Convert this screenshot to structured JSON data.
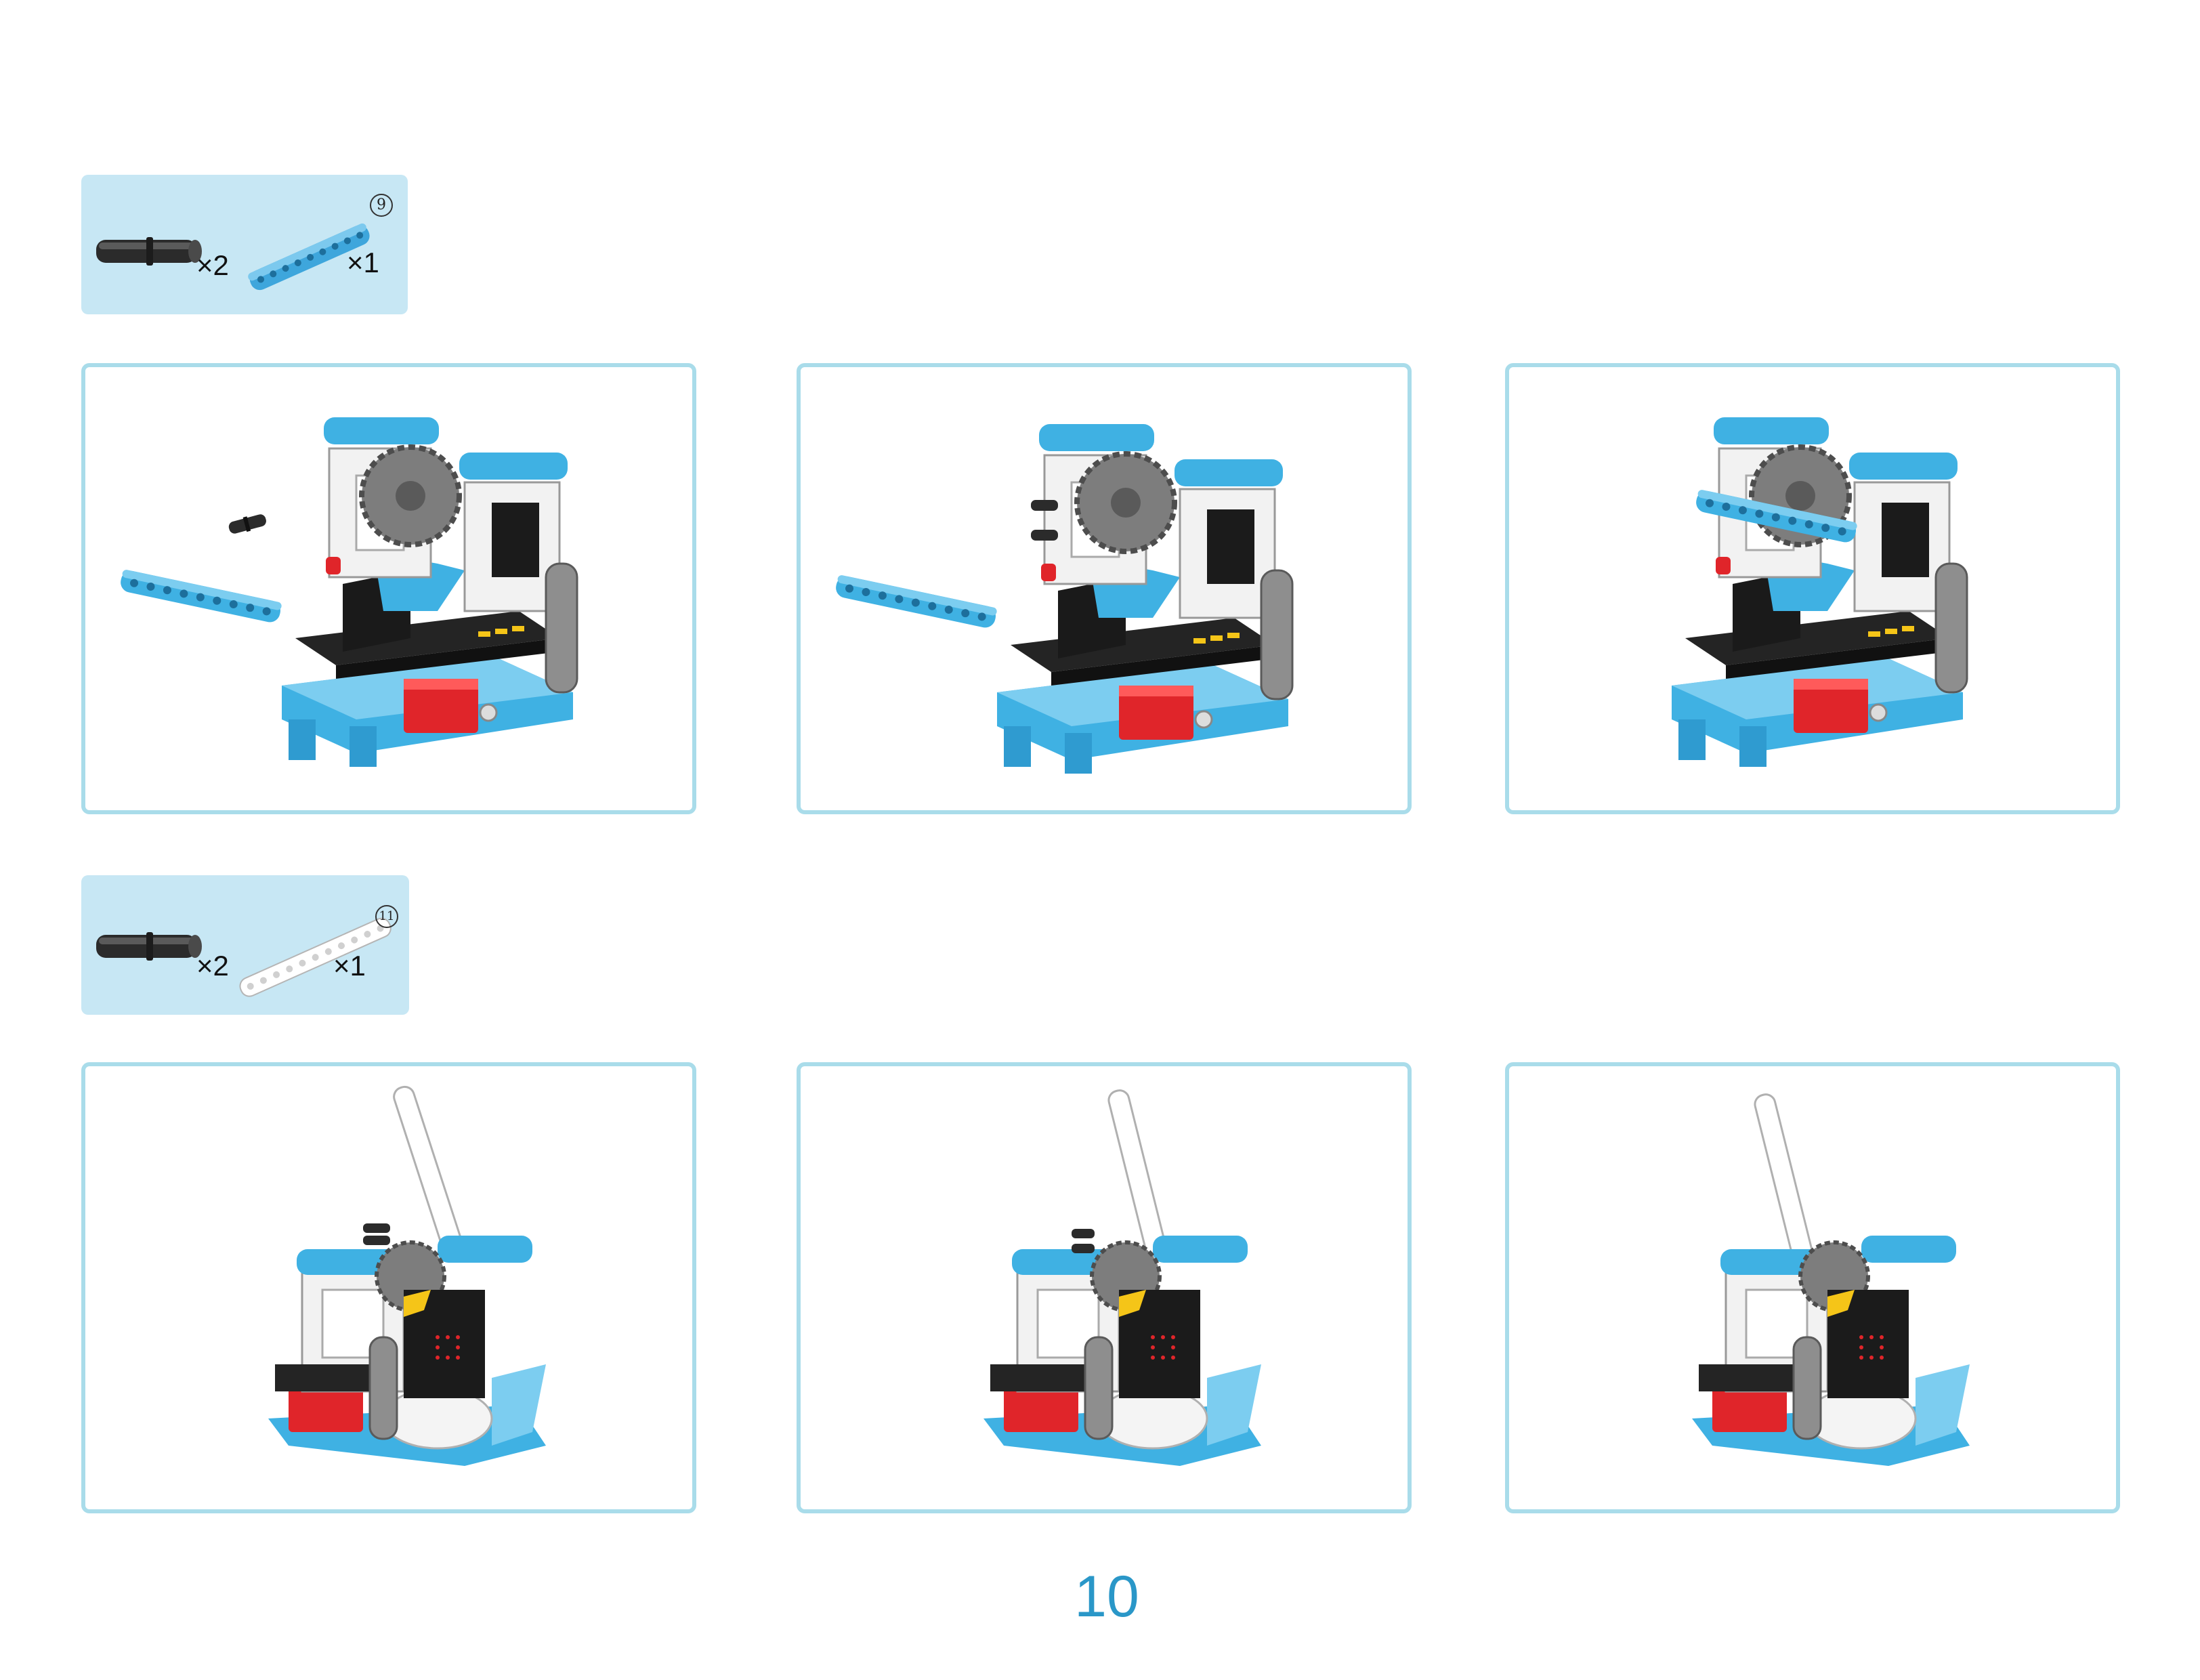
{
  "steps": [
    {
      "parts": [
        {
          "name": "black connector pin",
          "icon": "black-pin-icon",
          "quantity": "×2"
        },
        {
          "name": "blue beam",
          "icon": "blue-beam-icon",
          "quantity": "×1",
          "hole_count": "9"
        }
      ],
      "panels": [
        {
          "illustration": "assembly-step-beam-separate",
          "loose_beam": true,
          "beam_attached": false
        },
        {
          "illustration": "assembly-step-pins-inserted",
          "loose_beam": true,
          "beam_attached": false
        },
        {
          "illustration": "assembly-step-beam-attached",
          "loose_beam": false,
          "beam_attached": true
        }
      ]
    },
    {
      "parts": [
        {
          "name": "black connector pin",
          "icon": "black-pin-icon",
          "quantity": "×2"
        },
        {
          "name": "white beam",
          "icon": "white-beam-icon",
          "quantity": "×1",
          "hole_count": "11"
        }
      ],
      "panels": [
        {
          "illustration": "assembly-step-arm-pins",
          "arm_attached": false
        },
        {
          "illustration": "assembly-step-arm-positioned",
          "arm_attached": false
        },
        {
          "illustration": "assembly-step-arm-attached",
          "arm_attached": true
        }
      ]
    }
  ],
  "page_number": "10",
  "colors": {
    "parts_box_bg": "#c7e7f4",
    "panel_border": "#a9dcea",
    "page_number": "#2a97c8",
    "lego_blue": "#3fb1e3",
    "lego_red": "#e0252a",
    "lego_gray": "#7d7d7d",
    "lego_black": "#262626"
  }
}
